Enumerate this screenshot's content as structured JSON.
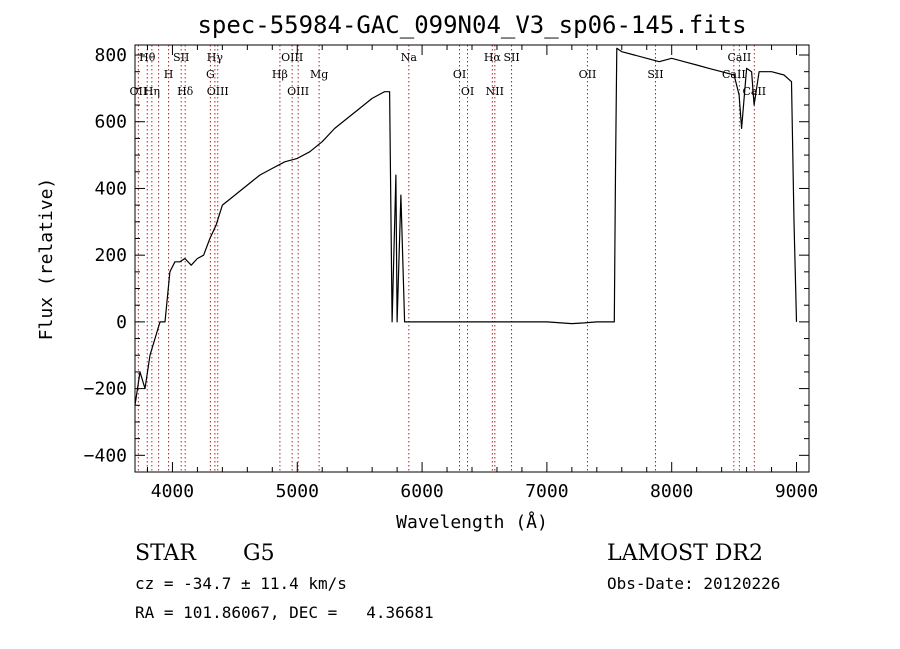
{
  "chart_data": {
    "type": "line",
    "title": "spec-55984-GAC_099N04_V3_sp06-145.fits",
    "xlabel": "Wavelength (Å)",
    "ylabel": "Flux (relative)",
    "xlim": [
      3700,
      9100
    ],
    "ylim": [
      -450,
      830
    ],
    "xticks": [
      4000,
      5000,
      6000,
      7000,
      8000,
      9000
    ],
    "yticks": [
      -400,
      -200,
      0,
      200,
      400,
      600,
      800
    ],
    "grid": false,
    "series": [
      {
        "x": [
          3700,
          3740,
          3780,
          3820,
          3860,
          3900,
          3940,
          3980,
          4020,
          4060,
          4100,
          4150,
          4200,
          4250,
          4300,
          4350,
          4400,
          4500,
          4600,
          4700,
          4800,
          4900,
          5000,
          5100,
          5200,
          5300,
          5400,
          5500,
          5600,
          5700,
          5740,
          5760,
          5790,
          5800,
          5830,
          5860,
          5900,
          6000,
          6500,
          7000,
          7200,
          7300,
          7400,
          7500,
          7540,
          7550,
          7560,
          7600,
          7700,
          7800,
          7900,
          8000,
          8100,
          8200,
          8300,
          8400,
          8500,
          8540,
          8560,
          8600,
          8640,
          8660,
          8700,
          8800,
          8900,
          8960,
          8980,
          9000
        ],
        "y": [
          -250,
          -150,
          -200,
          -100,
          -50,
          0,
          0,
          150,
          180,
          180,
          190,
          170,
          190,
          200,
          250,
          290,
          350,
          380,
          410,
          440,
          460,
          480,
          490,
          510,
          540,
          580,
          610,
          640,
          670,
          690,
          690,
          0,
          440,
          0,
          380,
          0,
          0,
          0,
          0,
          0,
          -5,
          -3,
          0,
          0,
          0,
          450,
          820,
          810,
          800,
          790,
          780,
          790,
          780,
          770,
          760,
          750,
          740,
          680,
          580,
          760,
          750,
          650,
          750,
          750,
          740,
          720,
          300,
          0
        ]
      }
    ],
    "annotations": [
      {
        "label": "Hθ",
        "x": 3798,
        "row": 1
      },
      {
        "label": "OII",
        "x": 3727,
        "row": 3
      },
      {
        "label": "Hη",
        "x": 3835,
        "row": 3
      },
      {
        "label": "SII",
        "x": 4070,
        "row": 1
      },
      {
        "label": "H",
        "x": 3969,
        "row": 2
      },
      {
        "label": "Hδ",
        "x": 4102,
        "row": 3
      },
      {
        "label": "Hγ",
        "x": 4340,
        "row": 1
      },
      {
        "label": "G",
        "x": 4304,
        "row": 2
      },
      {
        "label": "OIII",
        "x": 4363,
        "row": 3
      },
      {
        "label": "OIII",
        "x": 4959,
        "row": 1
      },
      {
        "label": "Hβ",
        "x": 4861,
        "row": 2
      },
      {
        "label": "OIII",
        "x": 5007,
        "row": 3
      },
      {
        "label": "Mg",
        "x": 5175,
        "row": 2
      },
      {
        "label": "Na",
        "x": 5894,
        "row": 1
      },
      {
        "label": "OI",
        "x": 6300,
        "row": 2
      },
      {
        "label": "OI",
        "x": 6364,
        "row": 3
      },
      {
        "label": "Hα",
        "x": 6563,
        "row": 1
      },
      {
        "label": "SII",
        "x": 6717,
        "row": 1
      },
      {
        "label": "NII",
        "x": 6583,
        "row": 3
      },
      {
        "label": "OII",
        "x": 7325,
        "row": 2
      },
      {
        "label": "SII",
        "x": 7870,
        "row": 2
      },
      {
        "label": "CaII",
        "x": 8542,
        "row": 1
      },
      {
        "label": "CaII",
        "x": 8498,
        "row": 2
      },
      {
        "label": "CaII",
        "x": 8662,
        "row": 3
      }
    ],
    "line_markers": [
      3727,
      3798,
      3835,
      3889,
      3969,
      4070,
      4102,
      4304,
      4340,
      4363,
      4861,
      4959,
      5007,
      5175,
      5894,
      6300,
      6364,
      6563,
      6583,
      6717,
      7325,
      7870,
      8498,
      8542,
      8662
    ]
  },
  "footer": {
    "class_label": "STAR",
    "subclass": "G5",
    "survey": "LAMOST DR2",
    "cz_line": "cz = -34.7 ± 11.4 km/s",
    "obs_date": "Obs-Date: 20120226",
    "radec_line": "RA = 101.86067, DEC =   4.36681"
  }
}
